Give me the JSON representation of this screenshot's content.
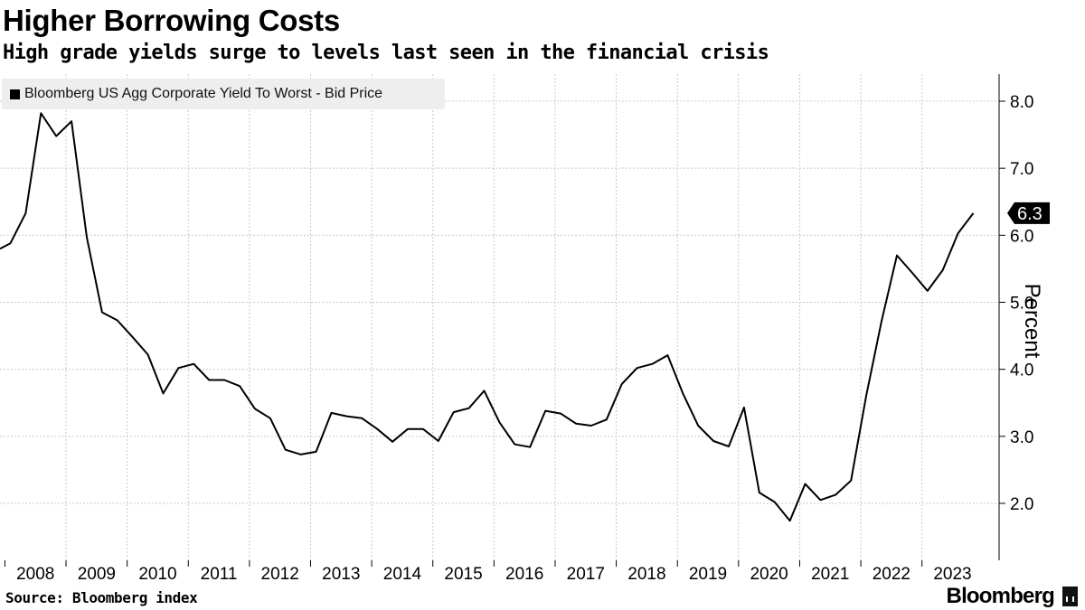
{
  "header": {
    "title": "Higher Borrowing Costs",
    "subtitle": "High grade yields surge to levels last seen in the financial crisis"
  },
  "footer": {
    "source": "Source: Bloomberg index",
    "brand": "Bloomberg"
  },
  "colors": {
    "line": "#000000",
    "grid": "#c8c8c8",
    "legend_bg": "#eeeeee"
  },
  "chart_data": {
    "type": "line",
    "title": "Higher Borrowing Costs",
    "subtitle": "High grade yields surge to levels last seen in the financial crisis",
    "ylabel": "Percent",
    "xlabel": "",
    "ylim": [
      1.2,
      8.4
    ],
    "xlim": [
      2007.83,
      2023.95
    ],
    "yticks": [
      2.0,
      3.0,
      4.0,
      5.0,
      6.0,
      7.0,
      8.0
    ],
    "ytick_labels": [
      "2.0",
      "3.0",
      "4.0",
      "5.0",
      "6.0",
      "7.0",
      "8.0"
    ],
    "xticks": [
      2008,
      2009,
      2010,
      2011,
      2012,
      2013,
      2014,
      2015,
      2016,
      2017,
      2018,
      2019,
      2020,
      2021,
      2022,
      2023
    ],
    "xtick_labels": [
      "2008",
      "2009",
      "2010",
      "2011",
      "2012",
      "2013",
      "2014",
      "2015",
      "2016",
      "2017",
      "2018",
      "2019",
      "2020",
      "2021",
      "2022",
      "2023"
    ],
    "grid": true,
    "legend": "top-left",
    "last_value_label": "6.3",
    "series": [
      {
        "name": "Bloomberg US Agg Corporate Yield To Worst - Bid Price",
        "x": [
          2007.83,
          2008.0,
          2008.25,
          2008.5,
          2008.75,
          2009.0,
          2009.25,
          2009.5,
          2009.75,
          2010.0,
          2010.25,
          2010.5,
          2010.75,
          2011.0,
          2011.25,
          2011.5,
          2011.75,
          2012.0,
          2012.25,
          2012.5,
          2012.75,
          2013.0,
          2013.25,
          2013.5,
          2013.75,
          2014.0,
          2014.25,
          2014.5,
          2014.75,
          2015.0,
          2015.25,
          2015.5,
          2015.75,
          2016.0,
          2016.25,
          2016.5,
          2016.75,
          2017.0,
          2017.25,
          2017.5,
          2017.75,
          2018.0,
          2018.25,
          2018.5,
          2018.75,
          2019.0,
          2019.25,
          2019.5,
          2019.75,
          2020.0,
          2020.25,
          2020.5,
          2020.75,
          2021.0,
          2021.25,
          2021.5,
          2021.75,
          2022.0,
          2022.25,
          2022.5,
          2022.75,
          2023.0,
          2023.25,
          2023.5,
          2023.75
        ],
        "values": [
          5.8,
          5.88,
          6.33,
          7.82,
          7.48,
          7.7,
          5.97,
          4.85,
          4.73,
          4.48,
          4.22,
          3.64,
          4.02,
          4.08,
          3.84,
          3.84,
          3.75,
          3.41,
          3.27,
          2.8,
          2.73,
          2.77,
          3.35,
          3.3,
          3.27,
          3.11,
          2.92,
          3.11,
          3.11,
          2.93,
          3.36,
          3.42,
          3.68,
          3.21,
          2.88,
          2.84,
          3.38,
          3.34,
          3.19,
          3.16,
          3.25,
          3.78,
          4.02,
          4.08,
          4.21,
          3.64,
          3.16,
          2.93,
          2.85,
          3.43,
          2.16,
          2.02,
          1.74,
          2.29,
          2.05,
          2.13,
          2.34,
          3.61,
          4.72,
          5.7,
          5.44,
          5.17,
          5.48,
          6.03,
          6.33
        ]
      }
    ]
  }
}
